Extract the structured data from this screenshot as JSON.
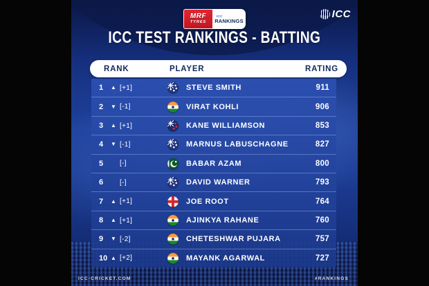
{
  "header": {
    "sponsor": {
      "line1": "MRF",
      "line2": "TYRES",
      "badge_top": "ICC",
      "badge_label": "RANKINGS"
    },
    "icc_logo_text": "ICC",
    "title": "ICC TEST RANKINGS - BATTING"
  },
  "table": {
    "columns": [
      "RANK",
      "PLAYER",
      "RATING"
    ],
    "rows": [
      {
        "rank": "1",
        "arrow": "▲",
        "direction": "up",
        "change": "[+1]",
        "flag": "australia",
        "player": "STEVE SMITH",
        "rating": "911"
      },
      {
        "rank": "2",
        "arrow": "▼",
        "direction": "down",
        "change": "[-1]",
        "flag": "india",
        "player": "VIRAT KOHLI",
        "rating": "906"
      },
      {
        "rank": "3",
        "arrow": "▲",
        "direction": "up",
        "change": "[+1]",
        "flag": "new-zealand",
        "player": "KANE WILLIAMSON",
        "rating": "853"
      },
      {
        "rank": "4",
        "arrow": "▼",
        "direction": "down",
        "change": "[-1]",
        "flag": "australia",
        "player": "MARNUS LABUSCHAGNE",
        "rating": "827"
      },
      {
        "rank": "5",
        "arrow": "",
        "direction": "none",
        "change": "[-]",
        "flag": "pakistan",
        "player": "BABAR AZAM",
        "rating": "800"
      },
      {
        "rank": "6",
        "arrow": "",
        "direction": "none",
        "change": "[-]",
        "flag": "australia",
        "player": "DAVID WARNER",
        "rating": "793"
      },
      {
        "rank": "7",
        "arrow": "▲",
        "direction": "up",
        "change": "[+1]",
        "flag": "england",
        "player": "JOE ROOT",
        "rating": "764"
      },
      {
        "rank": "8",
        "arrow": "▲",
        "direction": "up",
        "change": "[+1]",
        "flag": "india",
        "player": "AJINKYA RAHANE",
        "rating": "760"
      },
      {
        "rank": "9",
        "arrow": "▼",
        "direction": "down",
        "change": "[-2]",
        "flag": "india",
        "player": "CHETESHWAR PUJARA",
        "rating": "757"
      },
      {
        "rank": "10",
        "arrow": "▲",
        "direction": "up",
        "change": "[+2]",
        "flag": "india",
        "player": "MAYANK AGARWAL",
        "rating": "727"
      }
    ]
  },
  "footer": {
    "left": "ICC-CRICKET.COM",
    "right": "#RANKINGS"
  },
  "colors": {
    "letterbox": "#060505",
    "graphic_blue": "#1c3f9e",
    "panel_blue": "#1f3f94",
    "header_pill": "#ffffff",
    "pill_text": "#0e2a5e",
    "text": "#ffffff",
    "mrf_red": "#d6202c",
    "divider": "#84a2e4"
  },
  "chart_data": {
    "type": "table",
    "title": "ICC TEST RANKINGS - BATTING",
    "columns": [
      "RANK",
      "PLAYER",
      "RATING"
    ],
    "rows": [
      [
        "1 ▲ [+1]",
        "STEVE SMITH",
        911
      ],
      [
        "2 ▼ [-1]",
        "VIRAT KOHLI",
        906
      ],
      [
        "3 ▲ [+1]",
        "KANE WILLIAMSON",
        853
      ],
      [
        "4 ▼ [-1]",
        "MARNUS LABUSCHAGNE",
        827
      ],
      [
        "5 [-]",
        "BABAR AZAM",
        800
      ],
      [
        "6 [-]",
        "DAVID WARNER",
        793
      ],
      [
        "7 ▲ [+1]",
        "JOE ROOT",
        764
      ],
      [
        "8 ▲ [+1]",
        "AJINKYA RAHANE",
        760
      ],
      [
        "9 ▼ [-2]",
        "CHETESHWAR PUJARA",
        757
      ],
      [
        "10 ▲ [+2]",
        "MAYANK AGARWAL",
        727
      ]
    ]
  }
}
